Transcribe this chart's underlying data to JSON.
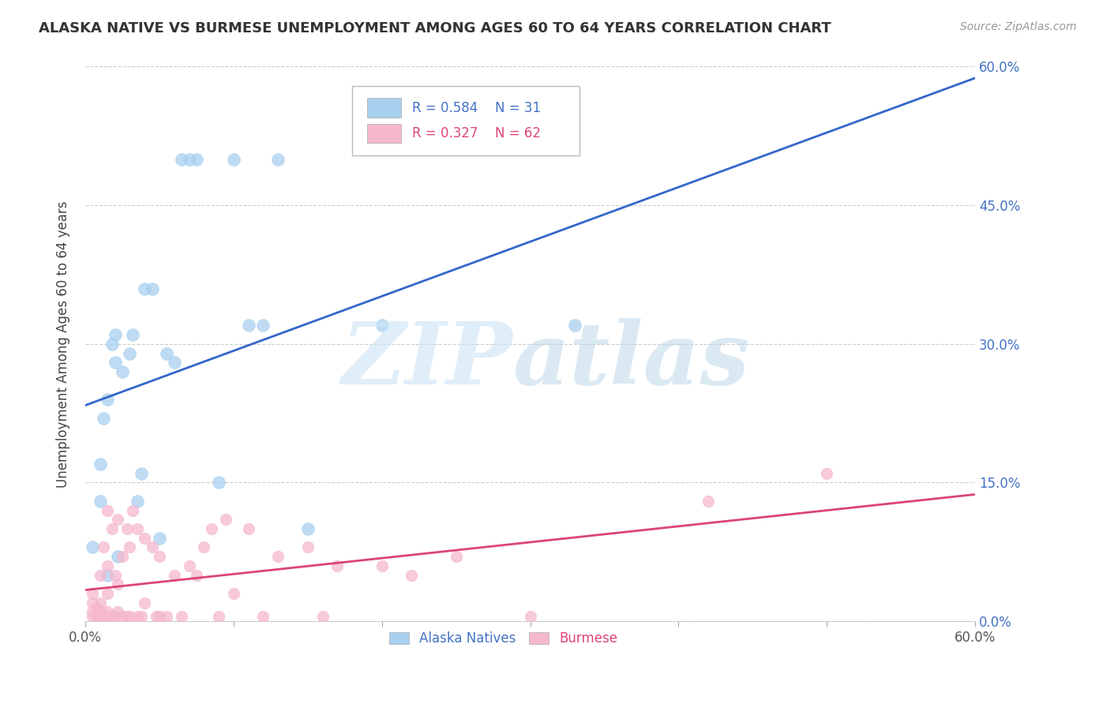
{
  "title": "ALASKA NATIVE VS BURMESE UNEMPLOYMENT AMONG AGES 60 TO 64 YEARS CORRELATION CHART",
  "source": "Source: ZipAtlas.com",
  "ylabel": "Unemployment Among Ages 60 to 64 years",
  "xlim": [
    0.0,
    0.6
  ],
  "ylim": [
    0.0,
    0.6
  ],
  "yticks": [
    0.0,
    0.15,
    0.3,
    0.45,
    0.6
  ],
  "ytick_labels": [
    "0.0%",
    "15.0%",
    "30.0%",
    "45.0%",
    "60.0%"
  ],
  "xtick_labels": [
    "0.0%",
    "60.0%"
  ],
  "alaska_color": "#a8d0f0",
  "burmese_color": "#f5b8cf",
  "alaska_line_color": "#3366cc",
  "burmese_line_color": "#dd4477",
  "alaska_R": 0.584,
  "alaska_N": 31,
  "burmese_R": 0.327,
  "burmese_N": 62,
  "alaska_x": [
    0.005,
    0.01,
    0.01,
    0.012,
    0.015,
    0.015,
    0.018,
    0.02,
    0.02,
    0.022,
    0.025,
    0.03,
    0.032,
    0.035,
    0.038,
    0.04,
    0.045,
    0.05,
    0.055,
    0.06,
    0.065,
    0.07,
    0.075,
    0.09,
    0.1,
    0.11,
    0.12,
    0.13,
    0.15,
    0.2,
    0.33
  ],
  "alaska_y": [
    0.08,
    0.13,
    0.17,
    0.22,
    0.24,
    0.05,
    0.3,
    0.28,
    0.31,
    0.07,
    0.27,
    0.29,
    0.31,
    0.13,
    0.16,
    0.36,
    0.36,
    0.09,
    0.29,
    0.28,
    0.5,
    0.5,
    0.5,
    0.15,
    0.5,
    0.32,
    0.32,
    0.5,
    0.1,
    0.32,
    0.32
  ],
  "burmese_x": [
    0.005,
    0.005,
    0.005,
    0.005,
    0.008,
    0.008,
    0.01,
    0.01,
    0.01,
    0.01,
    0.012,
    0.012,
    0.015,
    0.015,
    0.015,
    0.015,
    0.015,
    0.018,
    0.018,
    0.02,
    0.02,
    0.022,
    0.022,
    0.022,
    0.025,
    0.025,
    0.028,
    0.028,
    0.03,
    0.03,
    0.032,
    0.035,
    0.035,
    0.038,
    0.04,
    0.04,
    0.045,
    0.048,
    0.05,
    0.05,
    0.055,
    0.06,
    0.065,
    0.07,
    0.075,
    0.08,
    0.085,
    0.09,
    0.095,
    0.1,
    0.11,
    0.12,
    0.13,
    0.15,
    0.16,
    0.17,
    0.2,
    0.22,
    0.25,
    0.3,
    0.42,
    0.5
  ],
  "burmese_y": [
    0.005,
    0.01,
    0.02,
    0.03,
    0.005,
    0.015,
    0.005,
    0.01,
    0.02,
    0.05,
    0.005,
    0.08,
    0.005,
    0.01,
    0.03,
    0.06,
    0.12,
    0.005,
    0.1,
    0.005,
    0.05,
    0.01,
    0.04,
    0.11,
    0.005,
    0.07,
    0.005,
    0.1,
    0.005,
    0.08,
    0.12,
    0.005,
    0.1,
    0.005,
    0.02,
    0.09,
    0.08,
    0.005,
    0.005,
    0.07,
    0.005,
    0.05,
    0.005,
    0.06,
    0.05,
    0.08,
    0.1,
    0.005,
    0.11,
    0.03,
    0.1,
    0.005,
    0.07,
    0.08,
    0.005,
    0.06,
    0.06,
    0.05,
    0.07,
    0.005,
    0.13,
    0.16
  ]
}
